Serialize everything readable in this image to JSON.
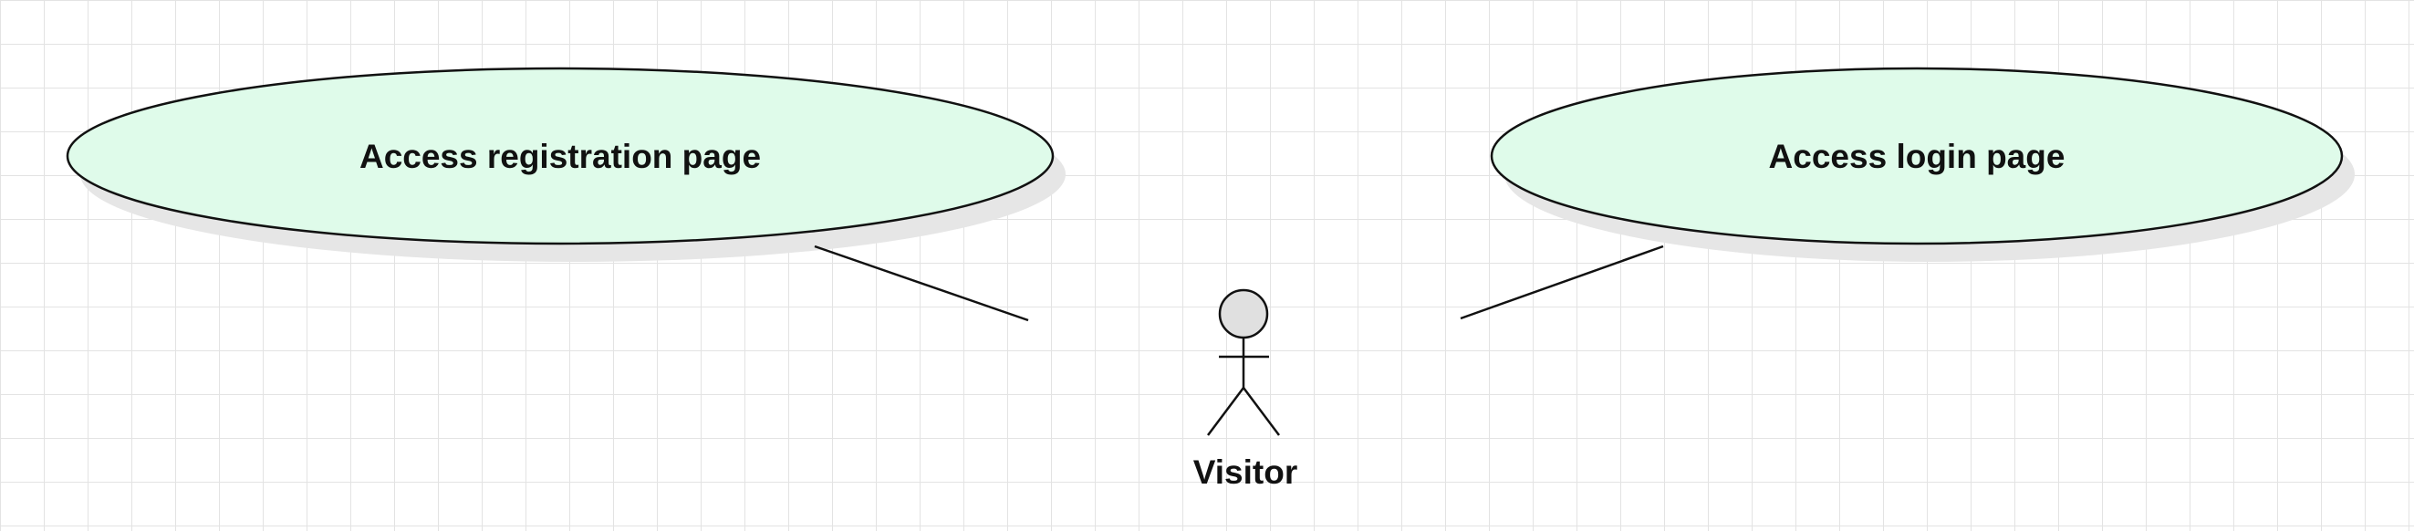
{
  "diagram": {
    "use_cases": [
      {
        "label": "Access registration page"
      },
      {
        "label": "Access login page"
      }
    ],
    "actor": {
      "label": "Visitor"
    },
    "colors": {
      "usecase_fill": "#dffbea",
      "usecase_stroke": "#111111",
      "shadow": "#e6e6e6",
      "actor_head_fill": "#e0e0e0",
      "line": "#111111",
      "grid": "#e3e3e3"
    }
  }
}
